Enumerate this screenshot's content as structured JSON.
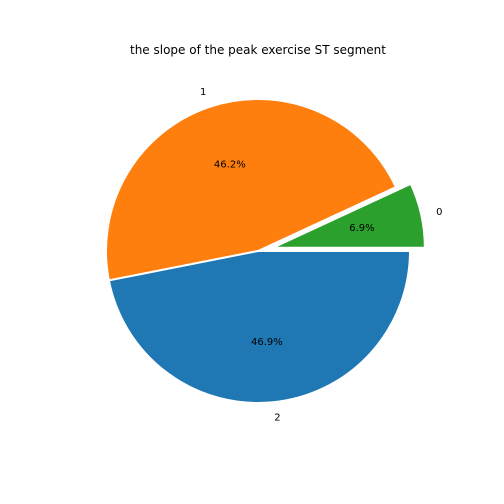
{
  "chart_data": {
    "type": "pie",
    "title": "the slope of the peak exercise ST segment",
    "categories": [
      "0",
      "1",
      "2"
    ],
    "values": [
      6.9,
      46.2,
      46.9
    ],
    "percent_labels": [
      "6.9%",
      "46.2%",
      "46.9%"
    ],
    "colors": [
      "#2ca02c",
      "#ff7f0e",
      "#1f77b4"
    ],
    "exploded": [
      "0"
    ]
  }
}
